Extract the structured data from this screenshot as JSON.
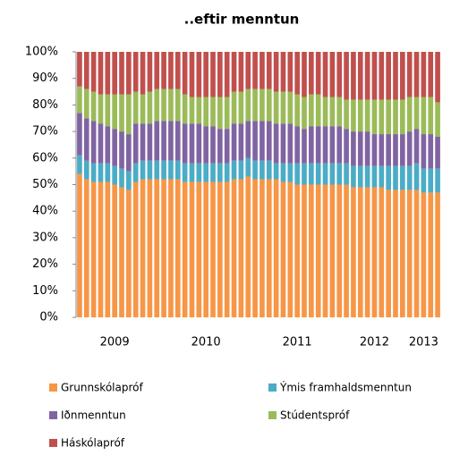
{
  "chart_data": {
    "type": "stacked_bar_100",
    "title": "..eftir menntun",
    "categories": [
      null,
      null,
      null,
      null,
      null,
      "2009",
      null,
      null,
      null,
      null,
      null,
      null,
      null,
      null,
      null,
      null,
      null,
      null,
      "2010",
      null,
      null,
      null,
      null,
      null,
      null,
      null,
      null,
      null,
      null,
      null,
      null,
      "2011",
      null,
      null,
      null,
      null,
      null,
      null,
      null,
      null,
      null,
      null,
      "2012",
      null,
      null,
      null,
      null,
      null,
      null,
      "2013",
      null,
      null
    ],
    "series": [
      {
        "name": "Grunnskólapróf",
        "color": "#f79646",
        "values": [
          54,
          52,
          51,
          51,
          51,
          50,
          49,
          48,
          51,
          52,
          52,
          52,
          52,
          52,
          52,
          51,
          51,
          51,
          51,
          51,
          51,
          51,
          52,
          52,
          53,
          52,
          52,
          52,
          52,
          51,
          51,
          50,
          50,
          50,
          50,
          50,
          50,
          50,
          50,
          49,
          49,
          49,
          49,
          49,
          48,
          48,
          48,
          48,
          48,
          47,
          47,
          47
        ]
      },
      {
        "name": "Ýmis framhaldsmenntun",
        "color": "#4bacc6",
        "values": [
          7,
          7,
          7,
          7,
          7,
          7,
          7,
          7,
          7,
          7,
          7,
          7,
          7,
          7,
          7,
          7,
          7,
          7,
          7,
          7,
          7,
          7,
          7,
          7,
          7,
          7,
          7,
          7,
          6,
          7,
          7,
          8,
          8,
          8,
          8,
          8,
          8,
          8,
          8,
          8,
          8,
          8,
          8,
          8,
          9,
          9,
          9,
          9,
          10,
          9,
          9,
          9
        ]
      },
      {
        "name": "Iðnmenntun",
        "color": "#8064a2",
        "values": [
          16,
          16,
          16,
          15,
          14,
          14,
          14,
          14,
          15,
          14,
          14,
          15,
          15,
          15,
          15,
          15,
          15,
          15,
          14,
          14,
          13,
          13,
          14,
          14,
          14,
          15,
          15,
          15,
          15,
          15,
          15,
          14,
          13,
          14,
          14,
          14,
          14,
          14,
          13,
          13,
          13,
          13,
          12,
          12,
          12,
          12,
          12,
          13,
          13,
          13,
          13,
          12
        ]
      },
      {
        "name": "Stúdentspróf",
        "color": "#9bbb59",
        "values": [
          10,
          11,
          11,
          11,
          12,
          13,
          14,
          15,
          12,
          11,
          12,
          12,
          12,
          12,
          12,
          11,
          10,
          10,
          11,
          11,
          12,
          12,
          12,
          12,
          12,
          12,
          12,
          12,
          12,
          12,
          12,
          12,
          12,
          12,
          12,
          11,
          11,
          11,
          11,
          12,
          12,
          12,
          13,
          13,
          13,
          13,
          13,
          13,
          12,
          14,
          14,
          13
        ]
      },
      {
        "name": "Háskólapróf",
        "color": "#c0504d",
        "values": [
          13,
          14,
          15,
          16,
          16,
          16,
          16,
          16,
          15,
          16,
          15,
          14,
          14,
          14,
          14,
          16,
          17,
          17,
          17,
          17,
          17,
          17,
          15,
          15,
          14,
          14,
          14,
          14,
          15,
          15,
          15,
          16,
          17,
          16,
          16,
          17,
          17,
          17,
          18,
          18,
          18,
          18,
          18,
          18,
          18,
          18,
          18,
          17,
          17,
          17,
          17,
          19
        ]
      }
    ],
    "ylim": [
      0,
      100
    ],
    "yticks": [
      {
        "value": 0,
        "label": "0%"
      },
      {
        "value": 10,
        "label": "10%"
      },
      {
        "value": 20,
        "label": "20%"
      },
      {
        "value": 30,
        "label": "30%"
      },
      {
        "value": 40,
        "label": "40%"
      },
      {
        "value": 50,
        "label": "50%"
      },
      {
        "value": 60,
        "label": "60%"
      },
      {
        "value": 70,
        "label": "70%"
      },
      {
        "value": 80,
        "label": "80%"
      },
      {
        "value": 90,
        "label": "90%"
      },
      {
        "value": 100,
        "label": "100%"
      }
    ],
    "grid": false
  }
}
